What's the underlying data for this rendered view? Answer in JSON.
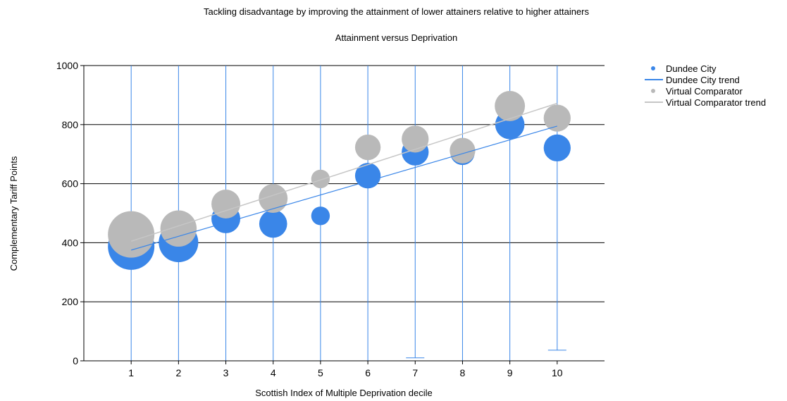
{
  "colors": {
    "dundee": "#3a86e8",
    "comparator": "#b9b9b9",
    "dundee_trend": "#3a86e8",
    "comparator_trend": "#c6c6c6",
    "gridline": "#000000",
    "errorbar": "#3a86e8"
  },
  "chart_data": {
    "type": "scatter",
    "title": "Tackling disadvantage by improving the attainment of lower attainers relative to higher attainers",
    "subtitle": "Attainment versus Deprivation",
    "xlabel": "Scottish Index of Multiple Deprivation decile",
    "ylabel": "Complementary Tariff Points",
    "xlim": [
      0,
      11
    ],
    "ylim": [
      0,
      1000
    ],
    "x_ticks": [
      1,
      2,
      3,
      4,
      5,
      6,
      7,
      8,
      9,
      10
    ],
    "y_ticks": [
      0,
      200,
      400,
      600,
      800,
      1000
    ],
    "grid": "horizontal major gridlines",
    "legend_position": "top-right",
    "bubble": true,
    "series": [
      {
        "name": "Dundee City",
        "kind": "bubble",
        "x": [
          1,
          2,
          3,
          4,
          5,
          6,
          7,
          8,
          9,
          10
        ],
        "y": [
          387,
          401,
          481,
          464,
          491,
          627,
          707,
          704,
          800,
          721
        ],
        "relative_size": [
          1.0,
          0.85,
          0.62,
          0.6,
          0.4,
          0.55,
          0.58,
          0.52,
          0.63,
          0.58
        ],
        "error_low": [
          0,
          0,
          0,
          0,
          0,
          0,
          10,
          0,
          0,
          36
        ],
        "error_high": [
          1000,
          1000,
          1000,
          1000,
          1000,
          1000,
          1000,
          1000,
          1000,
          1000
        ]
      },
      {
        "name": "Dundee City trend",
        "kind": "line",
        "x": [
          1,
          10
        ],
        "y": [
          375,
          795
        ]
      },
      {
        "name": "Virtual Comparator",
        "kind": "bubble",
        "x": [
          1,
          2,
          3,
          4,
          5,
          6,
          7,
          8,
          9,
          10
        ],
        "y": [
          428,
          448,
          531,
          550,
          616,
          723,
          751,
          712,
          863,
          822
        ],
        "relative_size": [
          1.0,
          0.78,
          0.62,
          0.62,
          0.4,
          0.55,
          0.58,
          0.55,
          0.65,
          0.58
        ]
      },
      {
        "name": "Virtual Comparator trend",
        "kind": "line",
        "x": [
          1,
          10
        ],
        "y": [
          405,
          872
        ]
      }
    ]
  }
}
